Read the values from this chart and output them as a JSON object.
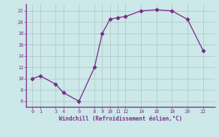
{
  "x": [
    0,
    1,
    3,
    4,
    6,
    8,
    9,
    10,
    11,
    12,
    14,
    16,
    18,
    20,
    22
  ],
  "y": [
    10,
    10.5,
    9,
    7.5,
    6,
    12,
    18,
    20.5,
    20.8,
    21,
    22,
    22.2,
    22,
    20.5,
    15
  ],
  "xticks": [
    0,
    1,
    3,
    4,
    6,
    8,
    9,
    10,
    11,
    12,
    14,
    16,
    18,
    20,
    22
  ],
  "yticks": [
    6,
    8,
    10,
    12,
    14,
    16,
    18,
    20,
    22
  ],
  "xlim": [
    -0.8,
    23.5
  ],
  "ylim": [
    5.0,
    23.2
  ],
  "xlabel": "Windchill (Refroidissement éolien,°C)",
  "line_color": "#7b2d8b",
  "marker": "D",
  "marker_size": 2.5,
  "bg_color": "#cce8e8",
  "grid_color": "#b0c8c8",
  "tick_color": "#7b2d8b",
  "xlabel_color": "#7b2d8b",
  "spine_color": "#7b2d8b"
}
